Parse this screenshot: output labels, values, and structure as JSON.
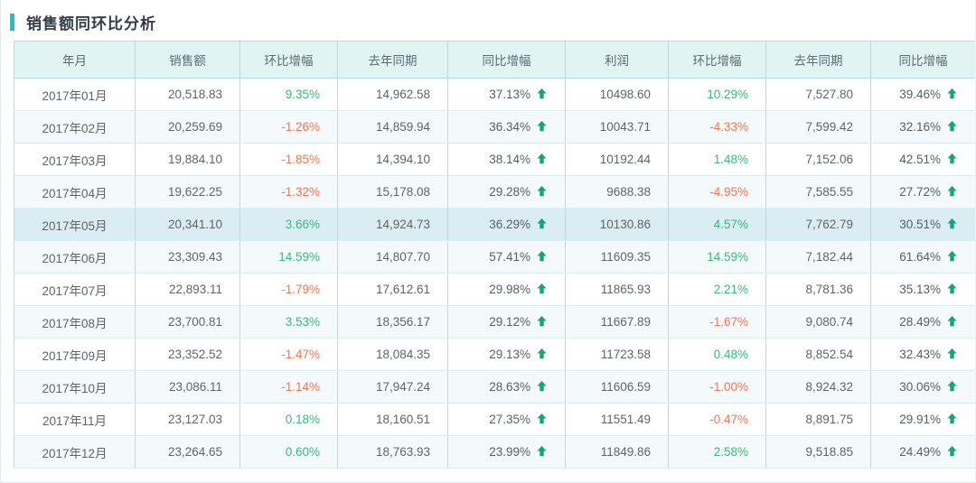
{
  "page": {
    "title": "销售额同环比分析"
  },
  "colors": {
    "accent": "#1bc2cc",
    "positive_green": "#3cb87a",
    "negative_orange": "#f5764e",
    "arrow_green": "#0da878",
    "header_background": "#e2f3f4",
    "highlight_row_background": "#d9edf2"
  },
  "table": {
    "columns": [
      {
        "name": "month",
        "label": "年月",
        "type": "text"
      },
      {
        "name": "sales",
        "label": "销售额",
        "type": "number"
      },
      {
        "name": "sales-mom",
        "label": "环比增幅",
        "type": "delta"
      },
      {
        "name": "sales-ly",
        "label": "去年同期",
        "type": "number"
      },
      {
        "name": "sales-yoy",
        "label": "同比增幅",
        "type": "growth"
      },
      {
        "name": "profit",
        "label": "利润",
        "type": "number"
      },
      {
        "name": "profit-mom",
        "label": "环比增幅",
        "type": "delta"
      },
      {
        "name": "profit-ly",
        "label": "去年同期",
        "type": "number"
      },
      {
        "name": "profit-yoy",
        "label": "同比增幅",
        "type": "growth"
      }
    ],
    "highlighted_row_index": 4,
    "rows": [
      [
        "2017年01月",
        "20,518.83",
        "9.35%",
        "14,962.58",
        "37.13%",
        "10498.60",
        "10.29%",
        "7,527.80",
        "39.46%"
      ],
      [
        "2017年02月",
        "20,259.69",
        "-1.26%",
        "14,859.94",
        "36.34%",
        "10043.71",
        "-4.33%",
        "7,599.42",
        "32.16%"
      ],
      [
        "2017年03月",
        "19,884.10",
        "-1.85%",
        "14,394.10",
        "38.14%",
        "10192.44",
        "1.48%",
        "7,152.06",
        "42.51%"
      ],
      [
        "2017年04月",
        "19,622.25",
        "-1.32%",
        "15,178.08",
        "29.28%",
        "9688.38",
        "-4.95%",
        "7,585.55",
        "27.72%"
      ],
      [
        "2017年05月",
        "20,341.10",
        "3.66%",
        "14,924.73",
        "36.29%",
        "10130.86",
        "4.57%",
        "7,762.79",
        "30.51%"
      ],
      [
        "2017年06月",
        "23,309.43",
        "14.59%",
        "14,807.70",
        "57.41%",
        "11609.35",
        "14.59%",
        "7,182.44",
        "61.64%"
      ],
      [
        "2017年07月",
        "22,893.11",
        "-1.79%",
        "17,612.61",
        "29.98%",
        "11865.93",
        "2.21%",
        "8,781.36",
        "35.13%"
      ],
      [
        "2017年08月",
        "23,700.81",
        "3.53%",
        "18,356.17",
        "29.12%",
        "11667.89",
        "-1.67%",
        "9,080.74",
        "28.49%"
      ],
      [
        "2017年09月",
        "23,352.52",
        "-1.47%",
        "18,084.35",
        "29.13%",
        "11723.58",
        "0.48%",
        "8,852.54",
        "32.43%"
      ],
      [
        "2017年10月",
        "23,086.11",
        "-1.14%",
        "17,947.24",
        "28.63%",
        "11606.59",
        "-1.00%",
        "8,924.32",
        "30.06%"
      ],
      [
        "2017年11月",
        "23,127.03",
        "0.18%",
        "18,160.51",
        "27.35%",
        "11551.49",
        "-0.47%",
        "8,891.75",
        "29.91%"
      ],
      [
        "2017年12月",
        "23,264.65",
        "0.60%",
        "18,763.93",
        "23.99%",
        "11849.86",
        "2.58%",
        "9,518.85",
        "24.49%"
      ]
    ]
  }
}
